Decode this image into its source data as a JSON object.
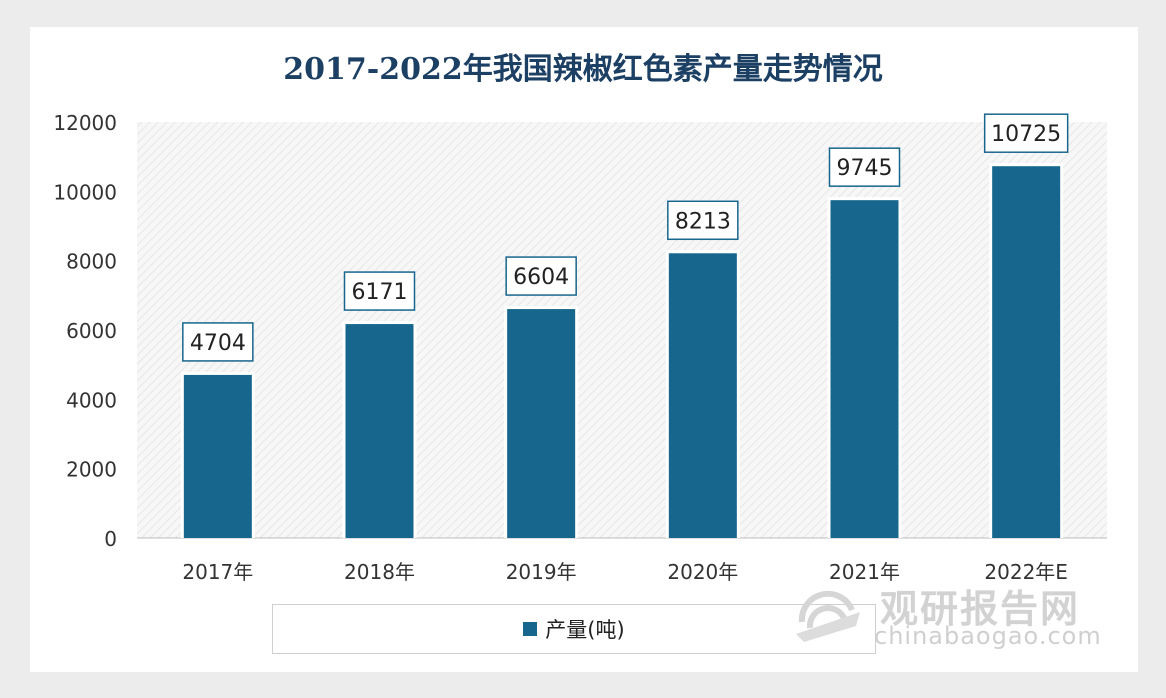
{
  "title": "2017-2022年我国辣椒红色素产量走势情况",
  "legend": {
    "label": "产量(吨)"
  },
  "colors": {
    "bar": "#17668e",
    "title": "#1c3f64",
    "label_border": "#17668e"
  },
  "watermark": {
    "cn": "观研报告网",
    "en": "chinabaogao.com"
  },
  "chart_data": {
    "type": "bar",
    "title": "2017-2022年我国辣椒红色素产量走势情况",
    "categories": [
      "2017年",
      "2018年",
      "2019年",
      "2020年",
      "2021年",
      "2022年E"
    ],
    "series": [
      {
        "name": "产量(吨)",
        "values": [
          4704,
          6171,
          6604,
          8213,
          9745,
          10725
        ]
      }
    ],
    "data_labels": [
      "4704",
      "6171",
      "6604",
      "8213",
      "9745",
      "10725"
    ],
    "ylim": [
      0,
      12000
    ],
    "yticks": [
      0,
      2000,
      4000,
      6000,
      8000,
      10000,
      12000
    ],
    "ytick_labels": [
      "0",
      "2000",
      "4000",
      "6000",
      "8000",
      "10000",
      "12000"
    ],
    "xlabel": "",
    "ylabel": "",
    "grid": false,
    "legend_position": "bottom"
  }
}
